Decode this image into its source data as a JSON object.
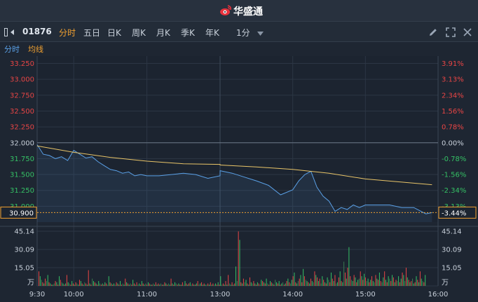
{
  "app": {
    "title": "华盛通",
    "logo_icon": "weibo-style-logo-icon"
  },
  "toolbar": {
    "code": "01876",
    "tabs": [
      {
        "label": "分时",
        "active": true
      },
      {
        "label": "五日",
        "active": false
      },
      {
        "label": "日K",
        "active": false
      },
      {
        "label": "周K",
        "active": false
      },
      {
        "label": "月K",
        "active": false
      },
      {
        "label": "季K",
        "active": false
      },
      {
        "label": "年K",
        "active": false
      }
    ],
    "interval": "1分",
    "icons": [
      "pencil-icon",
      "fullscreen-icon",
      "close-icon"
    ]
  },
  "subbar": {
    "tab_time": "分时",
    "tab_ma": "均线"
  },
  "colors": {
    "price_line": "#5aa0e6",
    "avg_line": "#e8c468",
    "up": "#e84545",
    "down": "#35c065",
    "accent": "#f0a030"
  },
  "chart_data": {
    "type": "line",
    "price_axis": {
      "ylim": [
        30.75,
        33.3
      ],
      "ticks": [
        "33.250",
        "33.000",
        "32.750",
        "32.500",
        "32.250",
        "32.000",
        "31.750",
        "31.500",
        "31.250",
        "31.000"
      ],
      "pct_ticks": [
        "3.91%",
        "3.13%",
        "2.34%",
        "1.56%",
        "0.78%",
        "0.00%",
        "-0.78%",
        "-1.56%",
        "-2.34%",
        "-3.13%"
      ],
      "prev_close": 32.0
    },
    "current": {
      "price": "30.900",
      "pct": "-3.44%"
    },
    "x_labels": [
      "9:30",
      "10:00",
      "11:00",
      "13:00",
      "14:00",
      "15:00",
      "16:00"
    ],
    "price_series": {
      "name": "价格",
      "x": [
        "09:30",
        "09:35",
        "09:40",
        "09:45",
        "09:50",
        "09:55",
        "10:00",
        "10:05",
        "10:10",
        "10:15",
        "10:20",
        "10:25",
        "10:30",
        "10:35",
        "10:40",
        "10:45",
        "10:50",
        "10:55",
        "11:00",
        "11:10",
        "11:20",
        "11:30",
        "11:40",
        "11:50",
        "12:00",
        "13:00",
        "13:10",
        "13:20",
        "13:30",
        "13:40",
        "13:50",
        "14:00",
        "14:05",
        "14:10",
        "14:15",
        "14:20",
        "14:25",
        "14:30",
        "14:35",
        "14:40",
        "14:45",
        "14:50",
        "14:55",
        "15:00",
        "15:10",
        "15:20",
        "15:30",
        "15:40",
        "15:50",
        "15:55"
      ],
      "y": [
        31.97,
        31.82,
        31.8,
        31.75,
        31.78,
        31.72,
        31.88,
        31.82,
        31.76,
        31.78,
        31.7,
        31.64,
        31.58,
        31.56,
        31.52,
        31.54,
        31.48,
        31.5,
        31.48,
        31.48,
        31.5,
        31.52,
        31.5,
        31.44,
        31.48,
        31.56,
        31.52,
        31.46,
        31.4,
        31.33,
        31.18,
        31.26,
        31.4,
        31.5,
        31.55,
        31.3,
        31.16,
        31.08,
        30.92,
        30.98,
        30.95,
        31.02,
        30.98,
        31.02,
        31.02,
        31.02,
        30.98,
        30.98,
        30.88,
        30.9
      ]
    },
    "avg_series": {
      "name": "均价",
      "x": [
        "09:30",
        "10:00",
        "10:30",
        "11:00",
        "11:30",
        "12:00",
        "13:00",
        "13:30",
        "14:00",
        "14:30",
        "15:00",
        "15:30",
        "15:55"
      ],
      "y": [
        31.95,
        31.85,
        31.77,
        31.71,
        31.67,
        31.66,
        31.65,
        31.62,
        31.58,
        31.52,
        31.43,
        31.38,
        31.34
      ]
    },
    "volume_axis": {
      "ticks": [
        "45.14",
        "30.09",
        "15.05",
        "万"
      ],
      "max": 45.14,
      "unit": "万"
    },
    "volume_series": {
      "name": "成交量",
      "values": [
        12,
        8,
        5,
        3,
        2,
        6,
        4,
        9,
        3,
        2,
        1,
        1,
        2,
        4,
        3,
        1,
        8,
        5,
        3,
        2,
        1,
        2,
        9,
        3,
        2,
        1,
        4,
        2,
        1,
        3,
        2,
        1,
        5,
        4,
        2,
        1,
        3,
        2,
        1,
        13,
        2,
        1,
        6,
        4,
        3,
        2,
        1,
        4,
        2,
        1,
        2,
        1,
        3,
        2,
        1,
        8,
        3,
        2,
        1,
        2,
        1,
        3,
        2,
        1,
        4,
        1,
        2,
        1,
        6,
        3,
        2,
        1,
        2,
        1,
        5,
        2,
        1,
        3,
        1,
        2,
        1,
        4,
        2,
        1,
        2,
        1,
        3,
        2,
        1,
        1,
        2,
        1,
        3,
        1,
        2,
        1,
        2,
        1,
        1,
        3,
        2,
        1,
        2,
        1,
        6,
        2,
        1,
        3,
        2,
        1,
        2,
        1,
        1,
        3,
        1,
        4,
        2,
        1,
        2,
        3,
        1,
        2,
        1,
        1,
        2,
        4,
        1,
        2,
        3,
        1,
        2,
        1,
        1,
        2,
        1,
        3,
        1,
        2,
        1,
        2,
        1,
        3,
        1,
        8,
        1,
        2,
        1,
        4,
        1,
        9,
        2,
        1,
        3,
        1,
        2,
        16,
        4,
        45,
        38,
        3,
        2,
        6,
        3,
        5,
        2,
        1,
        7,
        3,
        2,
        4,
        2,
        1,
        3,
        2,
        1,
        5,
        4,
        3,
        2,
        6,
        2,
        1,
        4,
        3,
        2,
        1,
        5,
        3,
        2,
        4,
        1,
        2,
        3,
        1,
        2,
        4,
        6,
        3,
        2,
        5,
        8,
        11,
        3,
        2,
        4,
        6,
        9,
        3,
        14,
        8,
        5,
        4,
        3,
        2,
        6,
        4,
        3,
        12,
        9,
        7,
        4,
        6,
        2,
        8,
        5,
        3,
        2,
        7,
        5,
        3,
        11,
        6,
        4,
        9,
        2,
        3,
        7,
        12,
        4,
        3,
        20,
        11,
        6,
        15,
        32,
        8,
        5,
        4,
        9,
        7,
        3,
        5,
        6,
        12,
        8,
        5,
        10,
        7,
        4,
        6,
        3,
        5,
        8,
        4,
        3,
        9,
        6,
        5,
        11,
        4,
        3,
        7,
        12,
        5,
        3,
        8,
        6,
        4,
        9,
        7,
        3,
        5,
        4,
        8,
        3,
        6,
        11,
        9,
        4,
        15,
        7,
        5,
        3,
        4,
        6,
        2,
        3,
        8,
        5,
        3,
        12,
        6,
        4,
        3,
        9
      ],
      "colors": "rgdrgrdgrgrgdrgrgrdgrgrgdrgrgrdgrgrgdrgrgrdgrgrgdrgrgrdgrgrgdrgrgrdgrgrgdrgrgrdgrgrgdrgrgrdgrgrgdrgrgrdgrgrgdrgrgrdgrgrgdrgrgrdgrgrgdrgrgrdgrgrgdrgrgrdgrgrgdrgrgrdgrgrgdrgrgrdgrgrgdrgrgrdgrgrgdrgrgrdgrgrgdrgrgrdgrgrgdrgrgrdgrgrgdrgrgrdgrgrgdrgrgrdgrgrgdrgrgrdgrgrgdrgrgrdgrgrgdrgrgrdgrgrgdrgrgrdgrgrg"
    }
  }
}
